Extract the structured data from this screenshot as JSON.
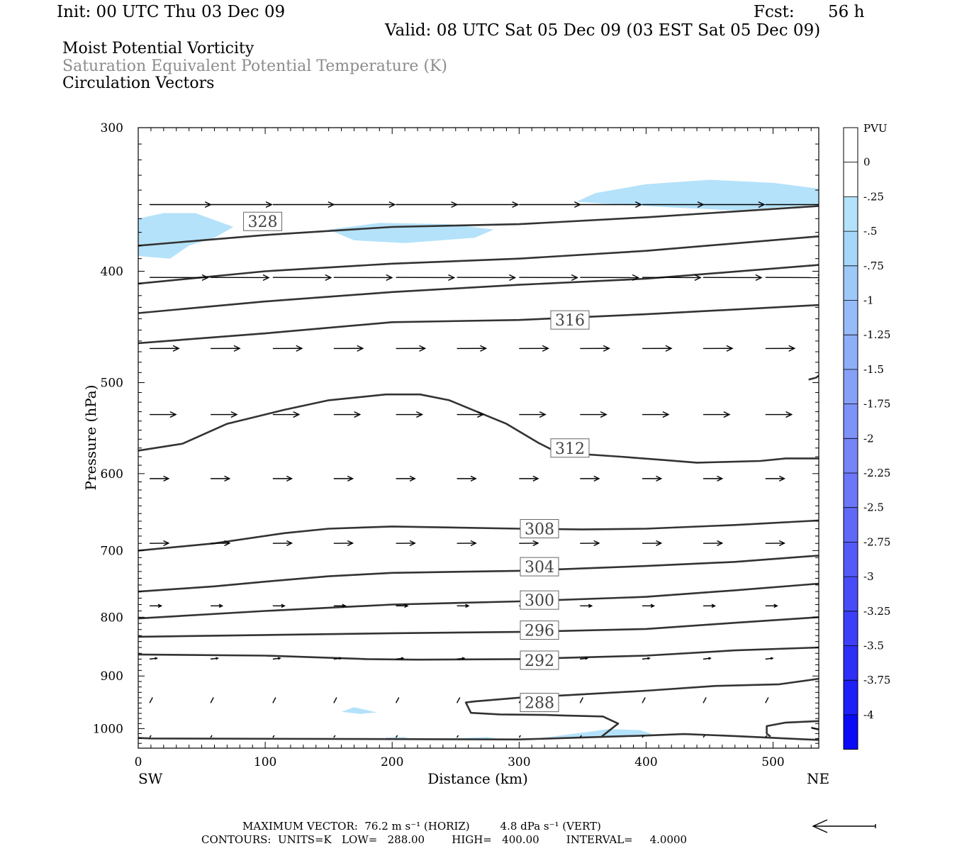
{
  "header": {
    "init": "Init: 00 UTC Thu 03 Dec 09",
    "fcst_label": "Fcst:",
    "fcst_value": "56 h",
    "valid": "Valid: 08 UTC Sat 05 Dec 09 (03 EST Sat 05 Dec 09)",
    "fields": [
      {
        "label": "Moist Potential Vorticity",
        "color": "#000000"
      },
      {
        "label": "Saturation Equivalent Potential Temperature (K)",
        "color": "#8c8c8c"
      },
      {
        "label": "Circulation Vectors",
        "color": "#000000"
      }
    ]
  },
  "chart_data": {
    "type": "cross-section contour",
    "xlabel": "Distance (km)",
    "ylabel": "Pressure (hPa)",
    "xlim": [
      0,
      536
    ],
    "ylim": [
      300,
      1040
    ],
    "y_log_scale": true,
    "x_ticks": [
      0,
      100,
      200,
      300,
      400,
      500
    ],
    "y_ticks": [
      300,
      400,
      500,
      600,
      700,
      800,
      900,
      1000
    ],
    "endpoints": {
      "left": "SW",
      "right": "NE"
    },
    "colorbar": {
      "title": "PVU",
      "labels": [
        "0",
        "-.25",
        "-.5",
        "-.75",
        "-1",
        "-1.25",
        "-1.5",
        "-1.75",
        "-2",
        "-2.25",
        "-2.5",
        "-2.75",
        "-3",
        "-3.25",
        "-3.5",
        "-3.75",
        "-4"
      ],
      "colors": [
        "#ffffff",
        "#ffffff",
        "#b4e2fa",
        "#a6d6fa",
        "#9ec8f8",
        "#96bbf8",
        "#8eaef8",
        "#86a0f8",
        "#7e92f8",
        "#7684f8",
        "#6c76f8",
        "#6068f8",
        "#545af8",
        "#484cf8",
        "#3c3ef8",
        "#2e2ef8",
        "#1f1ff8",
        "#0a0af8"
      ]
    },
    "contour_lines": [
      {
        "value": "328",
        "points": [
          [
            0,
            380
          ],
          [
            100,
            372
          ],
          [
            200,
            366
          ],
          [
            300,
            364
          ],
          [
            400,
            359
          ],
          [
            536,
            351
          ]
        ]
      },
      {
        "value": null,
        "points": [
          [
            0,
            410
          ],
          [
            100,
            400
          ],
          [
            200,
            394
          ],
          [
            300,
            390
          ],
          [
            400,
            384
          ],
          [
            536,
            373
          ]
        ]
      },
      {
        "value": null,
        "points": [
          [
            0,
            435
          ],
          [
            100,
            425
          ],
          [
            200,
            417
          ],
          [
            300,
            411
          ],
          [
            400,
            406
          ],
          [
            536,
            395
          ]
        ]
      },
      {
        "value": "316",
        "points": [
          [
            0,
            462
          ],
          [
            100,
            453
          ],
          [
            200,
            443
          ],
          [
            300,
            441
          ],
          [
            400,
            436
          ],
          [
            536,
            428
          ]
        ]
      },
      {
        "value": "312",
        "points": [
          [
            0,
            573
          ],
          [
            35,
            565
          ],
          [
            70,
            543
          ],
          [
            115,
            528
          ],
          [
            150,
            518
          ],
          [
            195,
            512
          ],
          [
            222,
            512
          ],
          [
            245,
            518
          ],
          [
            265,
            529
          ],
          [
            290,
            543
          ],
          [
            315,
            564
          ],
          [
            330,
            575
          ],
          [
            380,
            580
          ],
          [
            415,
            584
          ],
          [
            440,
            587
          ],
          [
            490,
            585
          ],
          [
            510,
            582
          ],
          [
            536,
            582
          ]
        ]
      },
      {
        "value": "308",
        "points": [
          [
            0,
            700
          ],
          [
            60,
            690
          ],
          [
            115,
            676
          ],
          [
            150,
            670
          ],
          [
            200,
            667
          ],
          [
            300,
            670
          ],
          [
            350,
            671
          ],
          [
            400,
            670
          ],
          [
            470,
            665
          ],
          [
            536,
            659
          ]
        ]
      },
      {
        "value": "304",
        "points": [
          [
            0,
            760
          ],
          [
            60,
            752
          ],
          [
            100,
            745
          ],
          [
            150,
            737
          ],
          [
            200,
            732
          ],
          [
            300,
            729
          ],
          [
            400,
            722
          ],
          [
            470,
            716
          ],
          [
            536,
            707
          ]
        ]
      },
      {
        "value": "300",
        "points": [
          [
            0,
            802
          ],
          [
            100,
            790
          ],
          [
            200,
            780
          ],
          [
            300,
            775
          ],
          [
            400,
            768
          ],
          [
            470,
            758
          ],
          [
            536,
            748
          ]
        ]
      },
      {
        "value": "296",
        "points": [
          [
            0,
            832
          ],
          [
            100,
            829
          ],
          [
            200,
            826
          ],
          [
            300,
            824
          ],
          [
            400,
            819
          ],
          [
            470,
            809
          ],
          [
            536,
            800
          ]
        ]
      },
      {
        "value": "292",
        "points": [
          [
            0,
            862
          ],
          [
            100,
            864
          ],
          [
            180,
            870
          ],
          [
            220,
            871
          ],
          [
            300,
            870
          ],
          [
            400,
            864
          ],
          [
            470,
            855
          ],
          [
            536,
            850
          ]
        ]
      },
      {
        "value": "288",
        "points": [
          [
            536,
            905
          ],
          [
            505,
            915
          ],
          [
            455,
            918
          ],
          [
            400,
            927
          ],
          [
            340,
            935
          ],
          [
            300,
            940
          ],
          [
            265,
            947
          ],
          [
            258,
            949
          ],
          [
            262,
            969
          ],
          [
            285,
            972
          ],
          [
            320,
            973
          ],
          [
            335,
            974
          ],
          [
            366,
            976
          ],
          [
            378,
            990
          ],
          [
            365,
            1016
          ]
        ]
      },
      {
        "value": null,
        "points": [
          [
            536,
            985
          ],
          [
            510,
            988
          ],
          [
            495,
            995
          ],
          [
            495,
            1010
          ],
          [
            498,
            1016
          ]
        ]
      },
      {
        "value": null,
        "points": [
          [
            0,
            1019
          ],
          [
            10,
            1020
          ],
          [
            300,
            1022
          ],
          [
            400,
            1014
          ],
          [
            430,
            1011
          ],
          [
            470,
            1015
          ],
          [
            536,
            1023
          ]
        ]
      },
      {
        "value": null,
        "points": [
          [
            536,
            1002
          ],
          [
            530,
            998
          ]
        ]
      },
      {
        "value": null,
        "points": [
          [
            528,
            497
          ],
          [
            534,
            495
          ],
          [
            536,
            493
          ]
        ]
      }
    ],
    "label_positions_km_hpa": [
      [
        98,
        362
      ],
      [
        340,
        441
      ],
      [
        340,
        570
      ],
      [
        316,
        670
      ],
      [
        316,
        723
      ],
      [
        316,
        773
      ],
      [
        316,
        821
      ],
      [
        316,
        872
      ],
      [
        316,
        949
      ]
    ],
    "shaded_regions": [
      {
        "pvu": "-.25 to -.5",
        "points": [
          [
            0,
            360
          ],
          [
            20,
            356
          ],
          [
            45,
            356
          ],
          [
            75,
            366
          ],
          [
            60,
            374
          ],
          [
            40,
            380
          ],
          [
            25,
            390
          ],
          [
            0,
            388
          ]
        ]
      },
      {
        "pvu": "-.25 to -.5",
        "points": [
          [
            150,
            368
          ],
          [
            190,
            363
          ],
          [
            245,
            364
          ],
          [
            280,
            368
          ],
          [
            265,
            374
          ],
          [
            210,
            378
          ],
          [
            170,
            376
          ]
        ]
      },
      {
        "pvu": "-.25 to -.5",
        "points": [
          [
            345,
            348
          ],
          [
            360,
            342
          ],
          [
            400,
            336
          ],
          [
            450,
            333
          ],
          [
            500,
            335
          ],
          [
            536,
            339
          ],
          [
            536,
            350
          ],
          [
            470,
            354
          ],
          [
            420,
            352
          ],
          [
            380,
            350
          ]
        ]
      },
      {
        "pvu": "-.25 to -.5",
        "points": [
          [
            160,
            967
          ],
          [
            170,
            958
          ],
          [
            188,
            968
          ],
          [
            175,
            971
          ]
        ]
      },
      {
        "pvu": "-.25 to -.5",
        "points": [
          [
            320,
            1018
          ],
          [
            350,
            1008
          ],
          [
            370,
            1001
          ],
          [
            395,
            1003
          ],
          [
            405,
            1011
          ],
          [
            380,
            1015
          ]
        ]
      },
      {
        "pvu": "-.25 to -.5",
        "points": [
          [
            195,
            1018
          ],
          [
            210,
            1017
          ],
          [
            215,
            1022
          ],
          [
            195,
            1023
          ]
        ]
      },
      {
        "pvu": "-.25 to -.5",
        "points": [
          [
            245,
            1020
          ],
          [
            275,
            1017
          ],
          [
            285,
            1021
          ],
          [
            250,
            1022
          ]
        ]
      }
    ],
    "vector_levels": [
      {
        "p": 350,
        "u": 42,
        "w": 0
      },
      {
        "p": 405,
        "u": 40,
        "w": -0.04
      },
      {
        "p": 467,
        "u": 20,
        "w": 0.04
      },
      {
        "p": 533,
        "u": 18,
        "w": 0
      },
      {
        "p": 606,
        "u": 13,
        "w": 0
      },
      {
        "p": 690,
        "u": 13,
        "w": 0.05
      },
      {
        "p": 782,
        "u": 8,
        "w": 0
      },
      {
        "p": 870,
        "u": 5,
        "w": 0.2
      },
      {
        "p": 950,
        "u": 2,
        "w": 1.3
      },
      {
        "p": 1018,
        "u": 1,
        "w": 0.5
      }
    ],
    "vector_x_km": [
      9,
      57,
      106,
      154,
      203,
      251,
      300,
      348,
      397,
      445,
      494,
      536
    ],
    "reference_vector_direction": "left"
  },
  "footer": {
    "max_vector": "MAXIMUM VECTOR:  76.2 m s⁻¹ (HORIZ)         4.8 dPa s⁻¹ (VERT)",
    "contours": "CONTOURS:  UNITS=K   LOW=   288.00        HIGH=   400.00        INTERVAL=     4.0000"
  }
}
